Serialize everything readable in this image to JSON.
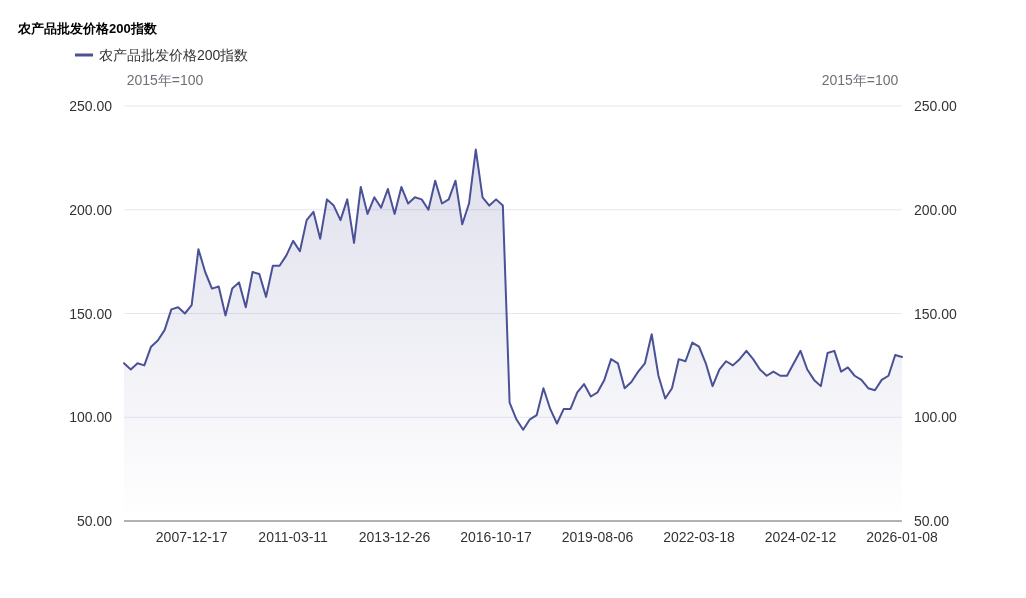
{
  "chart_data": {
    "type": "area",
    "title": "农产品批发价格200指数",
    "ylabel": "2015年=100",
    "y2label": "2015年=100",
    "categories": [
      null,
      null,
      null,
      null,
      null,
      null,
      null,
      null,
      null,
      null,
      "2007-12-17",
      null,
      null,
      null,
      null,
      null,
      null,
      null,
      null,
      null,
      null,
      null,
      null,
      null,
      null,
      "2011-03-11",
      null,
      null,
      null,
      null,
      null,
      null,
      null,
      null,
      null,
      null,
      null,
      null,
      null,
      null,
      "2013-12-26",
      null,
      null,
      null,
      null,
      null,
      null,
      null,
      null,
      null,
      null,
      null,
      null,
      null,
      null,
      "2016-10-17",
      null,
      null,
      null,
      null,
      null,
      null,
      null,
      null,
      null,
      null,
      null,
      null,
      null,
      null,
      "2019-08-06",
      null,
      null,
      null,
      null,
      null,
      null,
      null,
      null,
      null,
      null,
      null,
      null,
      null,
      null,
      "2022-03-18",
      null,
      null,
      null,
      null,
      null,
      null,
      null,
      null,
      null,
      null,
      null,
      null,
      null,
      null,
      "2024-02-12",
      null,
      null,
      null,
      null,
      null,
      null,
      null,
      null,
      null,
      null,
      null,
      null,
      null,
      null,
      "2026-01-08"
    ],
    "series": [
      {
        "name": "农产品批发价格200指数",
        "color": "#4a5196",
        "values": [
          126,
          123,
          126,
          125,
          134,
          137,
          142,
          152,
          153,
          150,
          154,
          181,
          170,
          162,
          163,
          149,
          162,
          165,
          153,
          170,
          169,
          158,
          173,
          173,
          178,
          185,
          180,
          195,
          199,
          186,
          205,
          202,
          195,
          205,
          184,
          211,
          198,
          206,
          201,
          210,
          198,
          211,
          203,
          206,
          205,
          200,
          214,
          203,
          205,
          214,
          193,
          203,
          229,
          206,
          202,
          205,
          202,
          107,
          99,
          94,
          99,
          101,
          114,
          104,
          97,
          104,
          104,
          112,
          116,
          110,
          112,
          118,
          128,
          126,
          114,
          117,
          122,
          126,
          140,
          120,
          109,
          114,
          128,
          127,
          136,
          134,
          126,
          115,
          123,
          127,
          125,
          128,
          132,
          128,
          123,
          120,
          122,
          120,
          120,
          126,
          132,
          123,
          118,
          115,
          131,
          132,
          122,
          124,
          120,
          118,
          114,
          113,
          118,
          120,
          130,
          129
        ]
      }
    ],
    "ylim": [
      50,
      250
    ],
    "yticks": [
      {
        "value": 50,
        "label": "50.00"
      },
      {
        "value": 100,
        "label": "100.00"
      },
      {
        "value": 150,
        "label": "150.00"
      },
      {
        "value": 200,
        "label": "200.00"
      },
      {
        "value": 250,
        "label": "250.00"
      }
    ],
    "y2lim": [
      50,
      250
    ],
    "y2ticks": [
      {
        "value": 50,
        "label": "50.00"
      },
      {
        "value": 100,
        "label": "100.00"
      },
      {
        "value": 150,
        "label": "150.00"
      },
      {
        "value": 200,
        "label": "200.00"
      },
      {
        "value": 250,
        "label": "250.00"
      }
    ],
    "grid": "y",
    "legend": "top left"
  }
}
